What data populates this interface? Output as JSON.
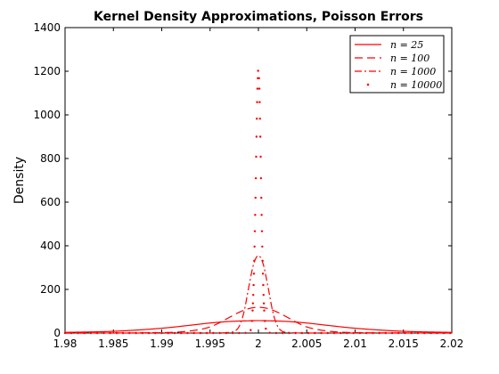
{
  "chart_data": {
    "type": "line",
    "title": "Kernel Density Approximations, Poisson Errors",
    "xlabel": "",
    "ylabel": "Density",
    "xlim": [
      1.98,
      2.02
    ],
    "ylim": [
      0,
      1400
    ],
    "x_ticks": [
      "1.98",
      "1.985",
      "1.99",
      "1.995",
      "2",
      "2.005",
      "2.01",
      "2.015",
      "2.02"
    ],
    "y_ticks": [
      "0",
      "200",
      "400",
      "600",
      "800",
      "1000",
      "1200",
      "1400"
    ],
    "grid": false,
    "legend_position": "top-right",
    "color": "#ff0000",
    "series": [
      {
        "name": "n = 25",
        "style": "solid",
        "x": [
          1.98,
          1.985,
          1.99,
          1.993,
          1.995,
          1.997,
          1.998,
          1.999,
          2.0,
          2.001,
          2.002,
          2.003,
          2.005,
          2.007,
          2.01,
          2.015,
          2.02
        ],
        "y": [
          3,
          8,
          22,
          36,
          46,
          53,
          55,
          56,
          57,
          56,
          55,
          53,
          46,
          36,
          22,
          8,
          3
        ]
      },
      {
        "name": "n = 100",
        "style": "dashed",
        "x": [
          1.98,
          1.99,
          1.993,
          1.995,
          1.996,
          1.997,
          1.998,
          1.999,
          2.0,
          2.001,
          2.002,
          2.003,
          2.004,
          2.005,
          2.007,
          2.01,
          2.02
        ],
        "y": [
          0,
          2,
          10,
          28,
          48,
          72,
          95,
          112,
          118,
          112,
          95,
          72,
          48,
          28,
          10,
          2,
          0
        ]
      },
      {
        "name": "n = 1000",
        "style": "dashdot",
        "x": [
          1.98,
          1.995,
          1.997,
          1.998,
          1.9985,
          1.999,
          1.9995,
          2.0,
          2.0005,
          2.001,
          2.0015,
          2.002,
          2.003,
          2.005,
          2.02
        ],
        "y": [
          0,
          0,
          3,
          30,
          95,
          210,
          315,
          355,
          315,
          210,
          95,
          30,
          3,
          0,
          0
        ]
      },
      {
        "name": "n = 10000",
        "style": "dotted",
        "x": [
          1.98,
          1.998,
          1.999,
          1.9993,
          1.9995,
          1.9997,
          1.9998,
          1.9999,
          2.0,
          2.0001,
          2.0002,
          2.0003,
          2.0005,
          2.0007,
          2.001,
          2.002,
          2.02
        ],
        "y": [
          0,
          0,
          2,
          40,
          220,
          620,
          900,
          1120,
          1215,
          1120,
          900,
          620,
          220,
          40,
          2,
          0,
          0
        ]
      }
    ]
  }
}
